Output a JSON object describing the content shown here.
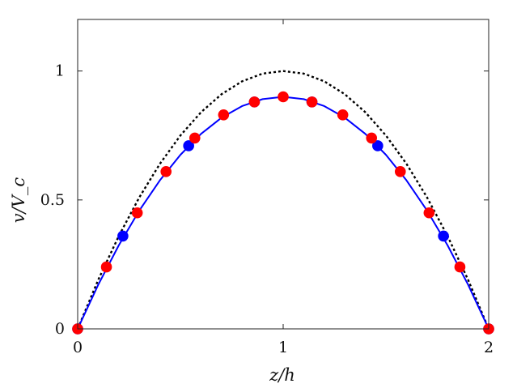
{
  "chart_data": {
    "type": "line",
    "title": "",
    "xlabel": "z/h",
    "ylabel": "v/V_c",
    "xlim": [
      0,
      2
    ],
    "ylim": [
      0,
      1.2
    ],
    "x_ticks": [
      0,
      1,
      2
    ],
    "x_tick_labels": [
      "0",
      "1",
      "2"
    ],
    "y_ticks": [
      0,
      0.5,
      1
    ],
    "y_tick_labels": [
      "0",
      "0.5",
      "1"
    ],
    "grid": false,
    "legend": "none",
    "series": [
      {
        "style": "dotted-line",
        "color": "#000000",
        "x": [
          0,
          0.1,
          0.2,
          0.3,
          0.4,
          0.5,
          0.6,
          0.7,
          0.8,
          0.9,
          1.0,
          1.1,
          1.2,
          1.3,
          1.4,
          1.5,
          1.6,
          1.7,
          1.8,
          1.9,
          2.0
        ],
        "y": [
          0,
          0.19,
          0.36,
          0.51,
          0.64,
          0.75,
          0.84,
          0.91,
          0.96,
          0.99,
          1.0,
          0.99,
          0.96,
          0.91,
          0.84,
          0.75,
          0.64,
          0.51,
          0.36,
          0.19,
          0
        ]
      },
      {
        "style": "solid-line",
        "color": "#0000ff",
        "x": [
          0,
          0.1,
          0.2,
          0.3,
          0.4,
          0.5,
          0.6,
          0.7,
          0.8,
          0.9,
          1.0,
          1.1,
          1.2,
          1.3,
          1.4,
          1.5,
          1.6,
          1.7,
          1.8,
          1.9,
          2.0
        ],
        "y": [
          0,
          0.171,
          0.324,
          0.459,
          0.576,
          0.675,
          0.756,
          0.819,
          0.864,
          0.891,
          0.9,
          0.891,
          0.864,
          0.819,
          0.756,
          0.675,
          0.576,
          0.459,
          0.324,
          0.171,
          0
        ]
      },
      {
        "style": "markers",
        "color": "#0000ff",
        "x": [
          0,
          0.22,
          0.54,
          0.86,
          1.14,
          1.46,
          1.78,
          2.0
        ],
        "y": [
          0,
          0.36,
          0.71,
          0.88,
          0.88,
          0.71,
          0.36,
          0
        ]
      },
      {
        "style": "markers",
        "color": "#ff0000",
        "x": [
          0,
          0.14,
          0.29,
          0.43,
          0.57,
          0.71,
          0.86,
          1.0,
          1.14,
          1.29,
          1.43,
          1.57,
          1.71,
          1.86,
          2.0
        ],
        "y": [
          0,
          0.24,
          0.45,
          0.61,
          0.74,
          0.83,
          0.88,
          0.9,
          0.88,
          0.83,
          0.74,
          0.61,
          0.45,
          0.24,
          0
        ]
      }
    ]
  }
}
